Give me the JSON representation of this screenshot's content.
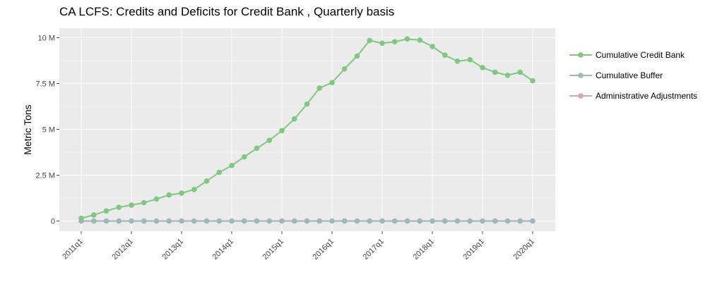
{
  "chart_data": {
    "type": "line",
    "title": "CA LCFS:  Credits and Deficits for  Credit Bank ,  Quarterly  basis",
    "xlabel": "",
    "ylabel": "Metric Tons",
    "ylim": [
      -0.5,
      10.5
    ],
    "y_ticks": [
      {
        "value": 0,
        "label": "0"
      },
      {
        "value": 2.5,
        "label": "2.5 M"
      },
      {
        "value": 5,
        "label": "5 M"
      },
      {
        "value": 7.5,
        "label": "7.5 M"
      },
      {
        "value": 10,
        "label": "10 M"
      }
    ],
    "x": [
      "2011q1",
      "2011q2",
      "2011q3",
      "2011q4",
      "2012q1",
      "2012q2",
      "2012q3",
      "2012q4",
      "2013q1",
      "2013q2",
      "2013q3",
      "2013q4",
      "2014q1",
      "2014q2",
      "2014q3",
      "2014q4",
      "2015q1",
      "2015q2",
      "2015q3",
      "2015q4",
      "2016q1",
      "2016q2",
      "2016q3",
      "2016q4",
      "2017q1",
      "2017q2",
      "2017q3",
      "2017q4",
      "2018q1",
      "2018q2",
      "2018q3",
      "2018q4",
      "2019q1",
      "2019q2",
      "2019q3",
      "2019q4",
      "2020q1"
    ],
    "x_tick_labels": [
      "2011q1",
      "2012q1",
      "2013q1",
      "2014q1",
      "2015q1",
      "2016q1",
      "2017q1",
      "2018q1",
      "2019q1",
      "2020q1"
    ],
    "grid": true,
    "legend_position": "right",
    "background": "#ebebeb",
    "series": [
      {
        "name": "Cumulative Credit Bank",
        "color": "#7fc97f",
        "values": [
          0.15,
          0.33,
          0.55,
          0.75,
          0.87,
          1.0,
          1.2,
          1.42,
          1.52,
          1.72,
          2.18,
          2.65,
          3.03,
          3.5,
          3.97,
          4.4,
          4.93,
          5.57,
          6.38,
          7.25,
          7.55,
          8.3,
          9.0,
          9.85,
          9.7,
          9.78,
          9.93,
          9.87,
          9.52,
          9.05,
          8.72,
          8.8,
          8.37,
          8.12,
          7.95,
          8.12,
          7.65
        ]
      },
      {
        "name": "Cumulative Buffer",
        "color": "#9eb8b8",
        "values": [
          0,
          0,
          0,
          0,
          0,
          0,
          0,
          0,
          0,
          0,
          0,
          0,
          0,
          0,
          0,
          0,
          0,
          0,
          0,
          0,
          0,
          0,
          0,
          0,
          0,
          0,
          0,
          0,
          0,
          0,
          0,
          0,
          0,
          0,
          0,
          0,
          0
        ]
      },
      {
        "name": "Administrative Adjustments",
        "color": "#d4a5b8",
        "values": [
          0,
          0,
          0,
          0,
          0,
          0,
          0,
          0,
          0,
          0,
          0,
          0,
          0,
          0,
          0,
          0,
          0,
          0,
          0,
          0,
          0,
          0,
          0,
          0,
          0,
          0,
          0,
          0,
          0,
          0,
          0,
          0,
          0,
          0,
          0,
          0,
          0
        ]
      }
    ]
  }
}
